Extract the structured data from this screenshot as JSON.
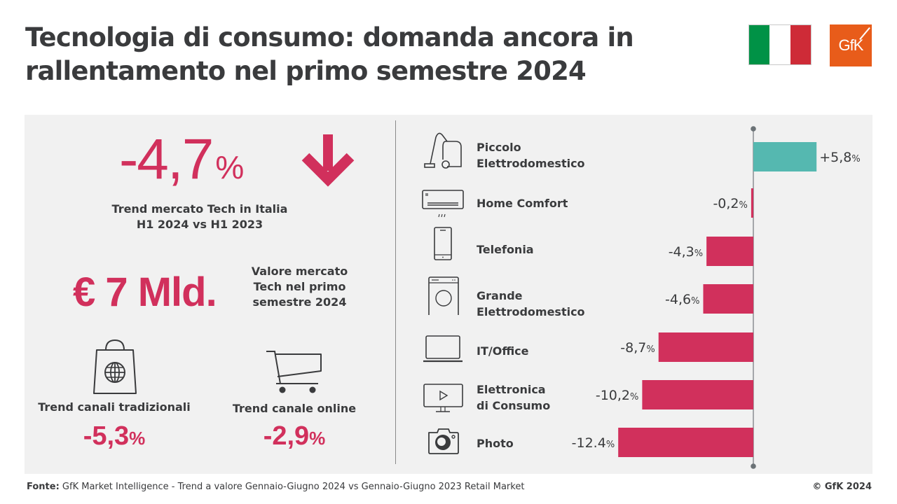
{
  "header": {
    "title_line1": "Tecnologia di consumo: domanda ancora in",
    "title_line2": "rallentamento nel primo semestre 2024",
    "flag": {
      "name": "italy-flag",
      "colors": [
        "#009246",
        "#ffffff",
        "#ce2b37"
      ]
    },
    "logo_text": "GfK",
    "brand_color": "#e85c1a"
  },
  "colors": {
    "negative": "#d1305c",
    "positive": "#55b8b0",
    "text": "#3a3b3d",
    "panel": "#f1f1f1"
  },
  "summary": {
    "market_trend": {
      "value": "-4,7",
      "unit": "%",
      "direction": "down-arrow-icon",
      "caption_line1": "Trend mercato Tech in Italia",
      "caption_line2": "H1 2024 vs H1 2023"
    },
    "market_value": {
      "value": "€ 7 Mld.",
      "caption_line1": "Valore mercato",
      "caption_line2": "Tech nel primo",
      "caption_line3": "semestre 2024"
    },
    "channels": [
      {
        "icon": "shopping-bag-globe-icon",
        "label": "Trend canali tradizionali",
        "value": "-5,3",
        "unit": "%"
      },
      {
        "icon": "shopping-cart-icon",
        "label": "Trend canale online",
        "value": "-2,9",
        "unit": "%"
      }
    ]
  },
  "chart_data": {
    "type": "bar",
    "orientation": "horizontal",
    "title": "",
    "xlabel": "",
    "ylabel": "",
    "unit": "%",
    "categories": [
      "Piccolo Elettrodomestico",
      "Home Comfort",
      "Telefonia",
      "Grande Elettrodomestico",
      "IT/Office",
      "Elettronica di Consumo",
      "Photo"
    ],
    "category_lines": [
      [
        "Piccolo",
        "Elettrodomestico"
      ],
      [
        "Home Comfort"
      ],
      [
        "Telefonia"
      ],
      [
        "Grande",
        "Elettrodomestico"
      ],
      [
        "IT/Office"
      ],
      [
        "Elettronica",
        "di Consumo"
      ],
      [
        "Photo"
      ]
    ],
    "icons": [
      "vacuum-cleaner-icon",
      "air-conditioner-icon",
      "smartphone-icon",
      "washing-machine-icon",
      "laptop-icon",
      "tv-monitor-icon",
      "camera-icon"
    ],
    "values": [
      5.8,
      -0.2,
      -4.3,
      -4.6,
      -8.7,
      -10.2,
      -12.4
    ],
    "value_labels": [
      "+5,8",
      "-0,2",
      "-4,3",
      "-4,6",
      "-8,7",
      "-10,2",
      "-12.4"
    ],
    "xlim": [
      -12.4,
      5.8
    ],
    "grid": false,
    "legend": "none"
  },
  "footer": {
    "source_label": "Fonte:",
    "source_text": " GfK Market Intelligence  - Trend a valore Gennaio-Giugno 2024 vs Gennaio-Giugno 2023 Retail Market",
    "copyright": "© GfK 2024"
  }
}
